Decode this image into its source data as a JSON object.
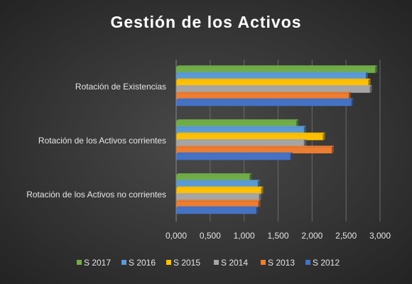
{
  "chart_data": {
    "type": "bar",
    "orientation": "horizontal",
    "title": "Gestión de los Activos",
    "categories": [
      "Rotación de Existencias",
      "Rotación de los Activos corrientes",
      "Rotación de los Activos no corrientes"
    ],
    "series": [
      {
        "name": "S 2017",
        "color": "#70ad47",
        "values": [
          2.93,
          1.77,
          1.08
        ]
      },
      {
        "name": "S 2016",
        "color": "#5b9bd5",
        "values": [
          2.79,
          1.88,
          1.2
        ]
      },
      {
        "name": "S 2015",
        "color": "#ffc000",
        "values": [
          2.83,
          2.16,
          1.25
        ]
      },
      {
        "name": "S 2014",
        "color": "#a5a5a5",
        "values": [
          2.85,
          1.88,
          1.22
        ]
      },
      {
        "name": "S 2013",
        "color": "#ed7d31",
        "values": [
          2.54,
          2.29,
          1.21
        ]
      },
      {
        "name": "S 2012",
        "color": "#4472c4",
        "values": [
          2.58,
          1.68,
          1.18
        ]
      }
    ],
    "xlim": [
      0,
      3
    ],
    "ticks": [
      "0,000",
      "0,500",
      "1,000",
      "1,500",
      "2,000",
      "2,500",
      "3,000"
    ],
    "xlabel": "",
    "ylabel": "",
    "grid": "vertical",
    "legend_position": "bottom"
  }
}
